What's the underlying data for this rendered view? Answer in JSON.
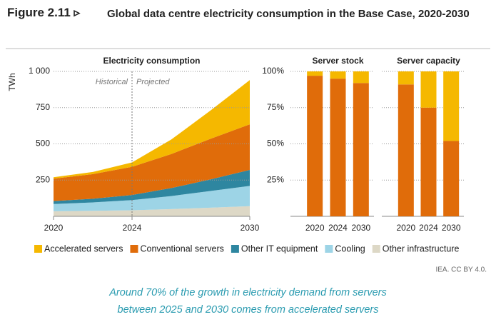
{
  "figure_label": "Figure 2.11 ▹",
  "title": "Global data centre electricity consumption in the Base Case, 2020-2030",
  "source": "IEA. CC BY 4.0.",
  "caption": [
    "Around 70% of the growth in electricity demand from servers",
    "between 2025 and 2030 comes from accelerated servers"
  ],
  "chart_data": [
    {
      "type": "area",
      "title": "Electricity consumption",
      "y_label": "TWh",
      "annotations": [
        "Historical",
        "Projected"
      ],
      "divider": 2024,
      "x": [
        2020,
        2022,
        2024,
        2026,
        2028,
        2030
      ],
      "xlim": [
        2020,
        2030
      ],
      "xticks": [
        2020,
        2024,
        2030
      ],
      "ylim": [
        0,
        1000
      ],
      "yticks": [
        250,
        500,
        750,
        {
          "value": 1000,
          "label": "1 000"
        }
      ],
      "grid": true,
      "series": [
        {
          "name": "Other infrastructure",
          "color": "#ddd8c6",
          "values": [
            35,
            38,
            42,
            50,
            60,
            70
          ]
        },
        {
          "name": "Cooling",
          "color": "#9dd4e6",
          "values": [
            50,
            58,
            70,
            90,
            115,
            140
          ]
        },
        {
          "name": "Other IT equipment",
          "color": "#2e86a0",
          "values": [
            20,
            25,
            35,
            55,
            80,
            110
          ]
        },
        {
          "name": "Conventional servers",
          "color": "#e06c0a",
          "values": [
            155,
            170,
            195,
            235,
            280,
            315
          ]
        },
        {
          "name": "Accelerated servers",
          "color": "#f5b800",
          "values": [
            10,
            15,
            30,
            100,
            195,
            305
          ]
        }
      ]
    },
    {
      "type": "bar",
      "title": "Server stock",
      "categories": [
        "2020",
        "2024",
        "2030"
      ],
      "ylim": [
        0,
        100
      ],
      "yticks": [
        {
          "value": 25,
          "label": "25%"
        },
        {
          "value": 50,
          "label": "50%"
        },
        {
          "value": 75,
          "label": "75%"
        },
        {
          "value": 100,
          "label": "100%"
        }
      ],
      "grid": true,
      "series": [
        {
          "color": "#e06c0a",
          "values": [
            97,
            95,
            92
          ]
        },
        {
          "color": "#f5b800",
          "values": [
            3,
            5,
            8
          ]
        }
      ]
    },
    {
      "type": "bar",
      "title": "Server capacity",
      "categories": [
        "2020",
        "2024",
        "2030"
      ],
      "ylim": [
        0,
        100
      ],
      "grid": true,
      "series": [
        {
          "color": "#e06c0a",
          "values": [
            91,
            75,
            52
          ]
        },
        {
          "color": "#f5b800",
          "values": [
            9,
            25,
            48
          ]
        }
      ]
    }
  ]
}
